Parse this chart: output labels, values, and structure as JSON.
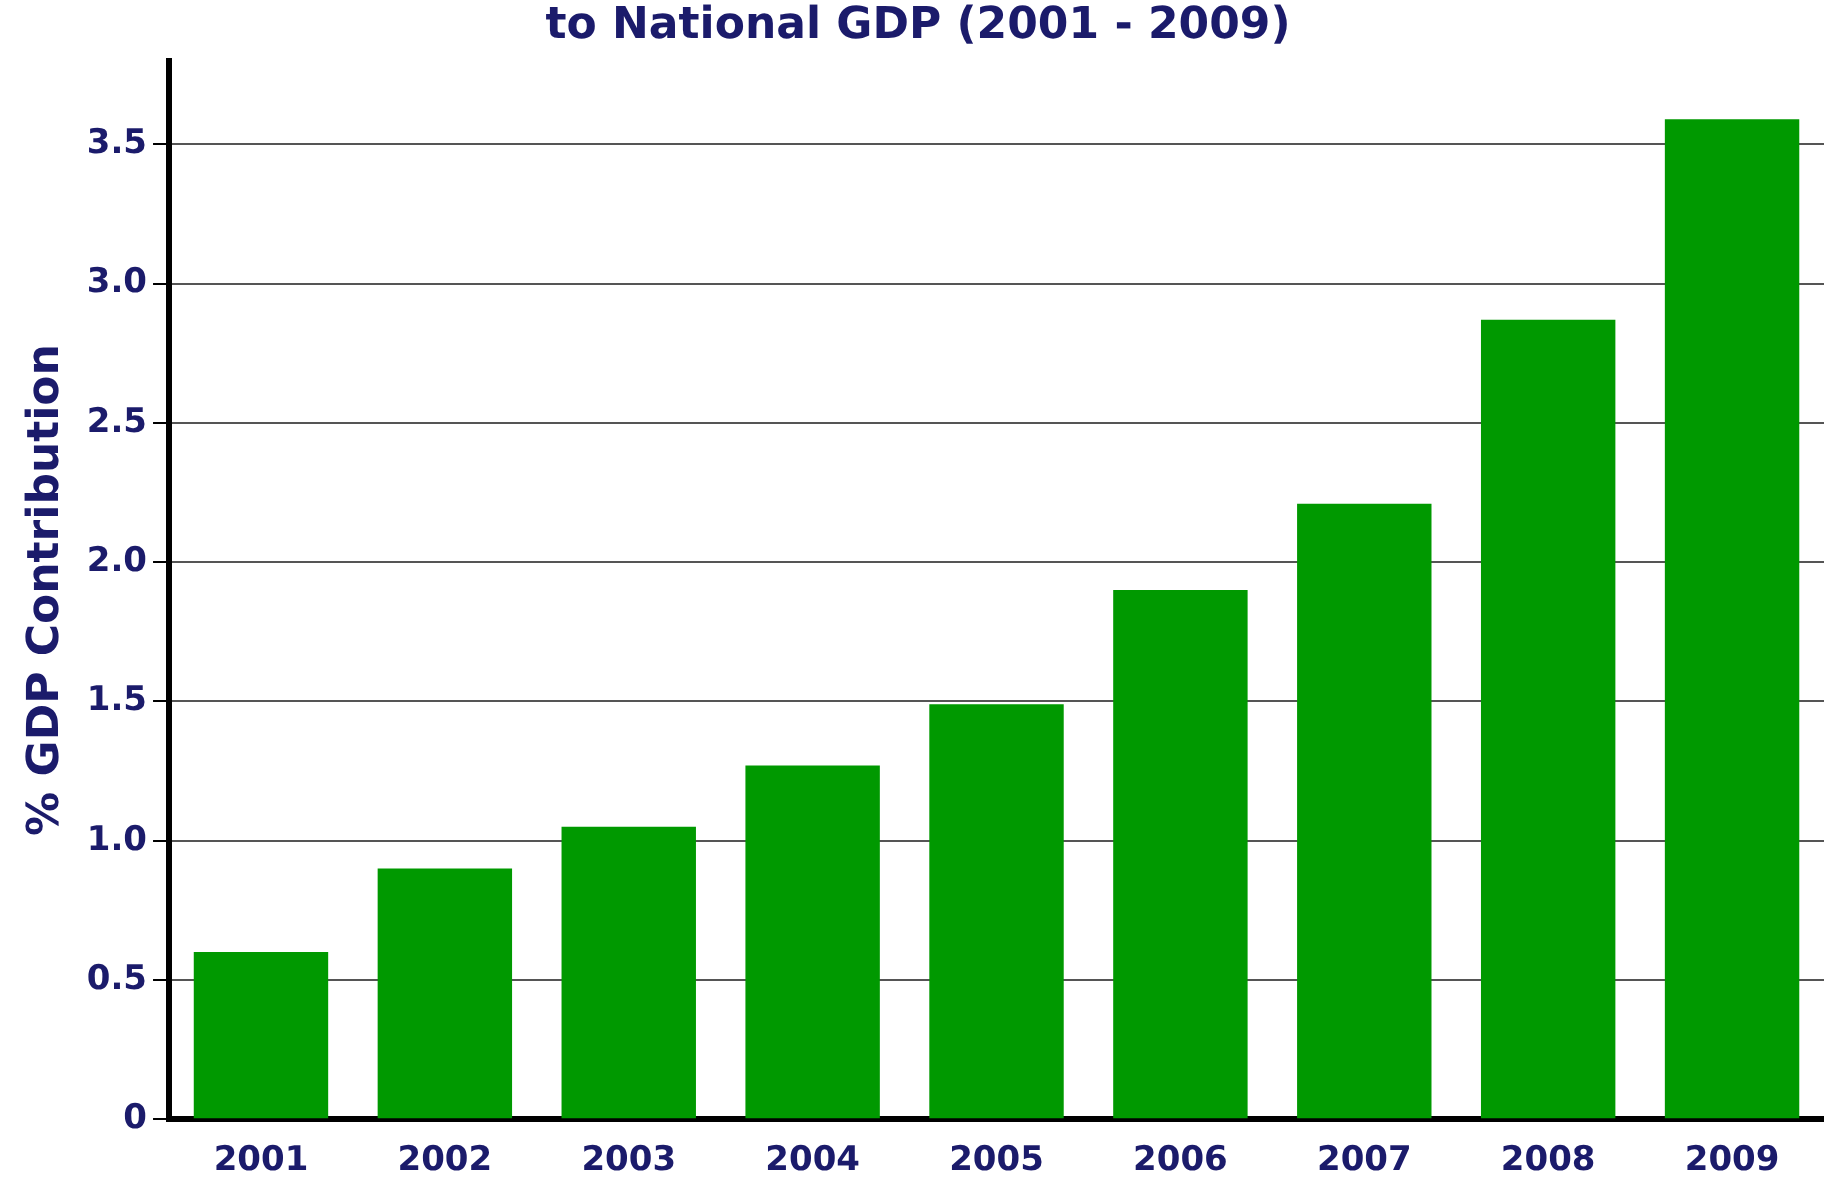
{
  "chart_data": {
    "type": "bar",
    "title": "to National GDP (2001 - 2009)",
    "ylabel": "% GDP Contribution",
    "categories": [
      "2001",
      "2002",
      "2003",
      "2004",
      "2005",
      "2006",
      "2007",
      "2008",
      "2009"
    ],
    "values": [
      0.6,
      0.9,
      1.05,
      1.27,
      1.49,
      1.9,
      2.21,
      2.87,
      3.59
    ],
    "color": "#009900",
    "ylim": [
      0,
      3.8
    ],
    "yticks": [
      0,
      0.5,
      {
        "value": 1,
        "label": "1.0"
      },
      1.5,
      {
        "value": 2,
        "label": "2.0"
      },
      2.5,
      {
        "value": 3,
        "label": "3.0"
      },
      3.5
    ],
    "grid": "y",
    "legend": false
  }
}
